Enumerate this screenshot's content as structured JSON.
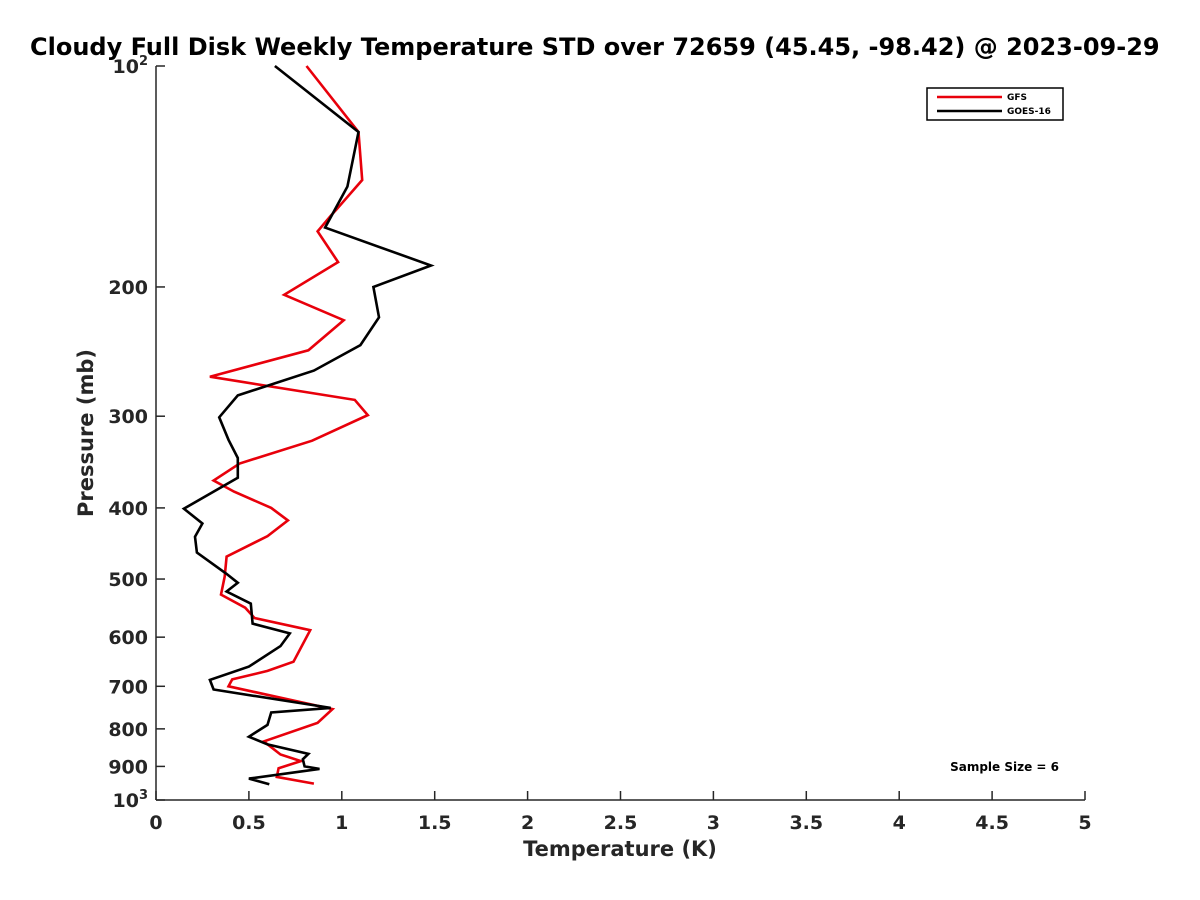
{
  "chart_data": {
    "type": "line",
    "title": "Cloudy Full Disk Weekly Temperature STD over 72659 (45.45, -98.42) @ 2023-09-29",
    "xlabel": "Temperature (K)",
    "ylabel": "Pressure (mb)",
    "xlim": [
      0,
      5
    ],
    "ylim": [
      100,
      1000
    ],
    "y_scale": "log",
    "y_reversed": true,
    "grid": false,
    "legend_position": "top-right",
    "x_ticks": [
      0,
      0.5,
      1,
      1.5,
      2,
      2.5,
      3,
      3.5,
      4,
      4.5,
      5
    ],
    "x_tick_labels": [
      "0",
      "0.5",
      "1",
      "1.5",
      "2",
      "2.5",
      "3",
      "3.5",
      "4",
      "4.5",
      "5"
    ],
    "y_ticks": [
      100,
      200,
      300,
      400,
      500,
      600,
      700,
      800,
      900,
      1000
    ],
    "y_tick_labels": [
      "10^2",
      "200",
      "300",
      "400",
      "500",
      "600",
      "700",
      "800",
      "900",
      "10^3"
    ],
    "series": [
      {
        "name": "GFS",
        "color": "#e8000b",
        "points": [
          [
            0.81,
            100
          ],
          [
            1.09,
            123
          ],
          [
            1.11,
            143
          ],
          [
            0.97,
            157
          ],
          [
            0.94,
            160
          ],
          [
            0.87,
            168
          ],
          [
            0.98,
            185
          ],
          [
            0.69,
            205
          ],
          [
            1.01,
            222
          ],
          [
            0.82,
            244
          ],
          [
            0.29,
            265
          ],
          [
            1.07,
            285
          ],
          [
            1.14,
            299
          ],
          [
            0.84,
            324
          ],
          [
            0.45,
            348
          ],
          [
            0.31,
            367
          ],
          [
            0.42,
            380
          ],
          [
            0.62,
            400
          ],
          [
            0.71,
            416
          ],
          [
            0.6,
            437
          ],
          [
            0.38,
            466
          ],
          [
            0.37,
            496
          ],
          [
            0.35,
            525
          ],
          [
            0.48,
            547
          ],
          [
            0.53,
            565
          ],
          [
            0.83,
            587
          ],
          [
            0.74,
            648
          ],
          [
            0.6,
            667
          ],
          [
            0.41,
            685
          ],
          [
            0.39,
            700
          ],
          [
            0.95,
            752
          ],
          [
            0.87,
            785
          ],
          [
            0.58,
            832
          ],
          [
            0.67,
            867
          ],
          [
            0.78,
            885
          ],
          [
            0.66,
            905
          ],
          [
            0.65,
            930
          ],
          [
            0.85,
            950
          ]
        ]
      },
      {
        "name": "GOES-16",
        "color": "#000000",
        "points": [
          [
            0.64,
            100
          ],
          [
            1.09,
            123
          ],
          [
            1.03,
            146
          ],
          [
            0.91,
            166
          ],
          [
            1.48,
            187
          ],
          [
            1.17,
            200
          ],
          [
            1.2,
            220
          ],
          [
            1.1,
            240
          ],
          [
            0.85,
            260
          ],
          [
            0.44,
            281
          ],
          [
            0.34,
            301
          ],
          [
            0.39,
            323
          ],
          [
            0.44,
            342
          ],
          [
            0.44,
            364
          ],
          [
            0.15,
            401
          ],
          [
            0.25,
            420
          ],
          [
            0.21,
            438
          ],
          [
            0.22,
            460
          ],
          [
            0.38,
            492
          ],
          [
            0.44,
            506
          ],
          [
            0.38,
            520
          ],
          [
            0.51,
            540
          ],
          [
            0.52,
            575
          ],
          [
            0.72,
            593
          ],
          [
            0.67,
            617
          ],
          [
            0.5,
            658
          ],
          [
            0.29,
            686
          ],
          [
            0.31,
            707
          ],
          [
            0.94,
            749
          ],
          [
            0.62,
            760
          ],
          [
            0.6,
            790
          ],
          [
            0.5,
            820
          ],
          [
            0.6,
            840
          ],
          [
            0.82,
            865
          ],
          [
            0.79,
            880
          ],
          [
            0.8,
            900
          ],
          [
            0.88,
            907
          ],
          [
            0.5,
            935
          ],
          [
            0.61,
            952
          ]
        ]
      }
    ],
    "annotations": [
      "Sample Size = 6"
    ]
  }
}
